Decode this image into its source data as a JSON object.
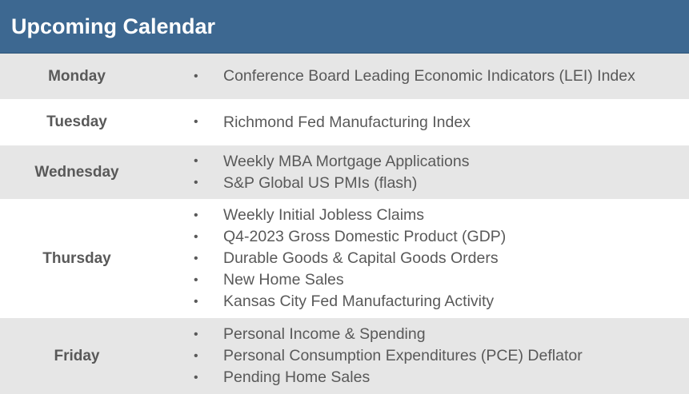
{
  "header": {
    "title": "Upcoming Calendar"
  },
  "bullet_char": "•",
  "days": [
    {
      "day": "Monday",
      "events": [
        "Conference Board Leading Economic Indicators (LEI) Index"
      ]
    },
    {
      "day": "Tuesday",
      "events": [
        "Richmond Fed Manufacturing Index"
      ]
    },
    {
      "day": "Wednesday",
      "events": [
        "Weekly MBA Mortgage Applications",
        "S&P Global US PMIs (flash)"
      ]
    },
    {
      "day": "Thursday",
      "events": [
        "Weekly Initial Jobless Claims",
        "Q4-2023 Gross Domestic Product (GDP)",
        "Durable Goods & Capital Goods Orders",
        "New Home Sales",
        "Kansas City Fed Manufacturing Activity"
      ]
    },
    {
      "day": "Friday",
      "events": [
        "Personal Income & Spending",
        "Personal Consumption Expenditures (PCE) Deflator",
        "Pending Home Sales"
      ]
    }
  ],
  "colors": {
    "header_bg": "#3d6891",
    "shaded_row": "#e6e6e6",
    "text": "#595959"
  }
}
